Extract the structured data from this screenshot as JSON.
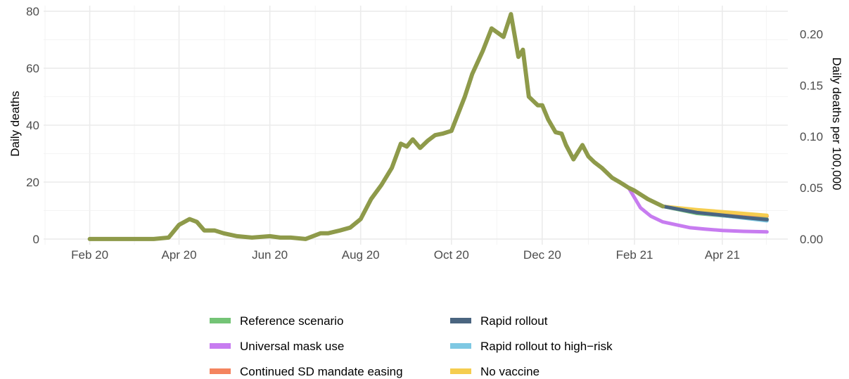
{
  "chart_data": {
    "type": "line",
    "title": "",
    "xlabel": "",
    "ylabel": "Daily deaths",
    "ylabel_right": "Daily deaths per 100,000",
    "x_tick_labels": [
      "Feb 20",
      "Apr 20",
      "Jun 20",
      "Aug 20",
      "Oct 20",
      "Dec 20",
      "Feb 21",
      "Apr 21"
    ],
    "x_tick_dates": [
      "2020-02-01",
      "2020-04-01",
      "2020-06-01",
      "2020-08-01",
      "2020-10-01",
      "2020-12-01",
      "2021-02-01",
      "2021-04-01"
    ],
    "y_ticks": [
      0,
      20,
      40,
      60,
      80
    ],
    "y_ticks_right": [
      "0.00",
      "0.05",
      "0.10",
      "0.15",
      "0.20"
    ],
    "ylim": [
      -2,
      82
    ],
    "xlim": [
      "2020-01-01",
      "2021-05-15"
    ],
    "grid": true,
    "legend_position": "bottom",
    "colors": {
      "reference": "#74c476",
      "mask": "#c77cf0",
      "sd_easing": "#f4845f",
      "rapid": "#4a6580",
      "rapid_high_risk": "#7ec8e3",
      "no_vaccine": "#f5cd4f",
      "history": "#8e9a4a"
    },
    "history": {
      "x": [
        "2020-02-01",
        "2020-02-15",
        "2020-03-01",
        "2020-03-15",
        "2020-03-25",
        "2020-04-01",
        "2020-04-08",
        "2020-04-13",
        "2020-04-18",
        "2020-04-25",
        "2020-05-01",
        "2020-05-10",
        "2020-05-20",
        "2020-06-01",
        "2020-06-08",
        "2020-06-15",
        "2020-06-25",
        "2020-07-05",
        "2020-07-10",
        "2020-07-18",
        "2020-07-25",
        "2020-08-01",
        "2020-08-08",
        "2020-08-15",
        "2020-08-22",
        "2020-08-28",
        "2020-09-01",
        "2020-09-05",
        "2020-09-10",
        "2020-09-15",
        "2020-09-20",
        "2020-09-25",
        "2020-10-01",
        "2020-10-10",
        "2020-10-15",
        "2020-10-22",
        "2020-10-28",
        "2020-11-05",
        "2020-11-10",
        "2020-11-15",
        "2020-11-18",
        "2020-11-22",
        "2020-11-28",
        "2020-12-01",
        "2020-12-05",
        "2020-12-10",
        "2020-12-14",
        "2020-12-17",
        "2020-12-22",
        "2020-12-28",
        "2021-01-01",
        "2021-01-05",
        "2021-01-10",
        "2021-01-14",
        "2021-01-17",
        "2021-01-22",
        "2021-01-28",
        "2021-02-01",
        "2021-02-10",
        "2021-02-20"
      ],
      "y": [
        0,
        0,
        0,
        0,
        0.5,
        5,
        7,
        6,
        3,
        3,
        2,
        1,
        0.5,
        1,
        0.5,
        0.5,
        0,
        2,
        2,
        3,
        4,
        7,
        14,
        19,
        25,
        33.5,
        32.5,
        35,
        32,
        34.5,
        36.5,
        37,
        38,
        50,
        58,
        66,
        74,
        71,
        79,
        64,
        66.5,
        50,
        47,
        47,
        42,
        37.5,
        37,
        33,
        28,
        33,
        29,
        27,
        25,
        23,
        21.5,
        20,
        18,
        17,
        14,
        11.5
      ]
    },
    "series": [
      {
        "name": "Reference scenario",
        "key": "reference",
        "x": [
          "2021-02-20",
          "2021-03-15",
          "2021-04-15",
          "2021-05-01"
        ],
        "y": [
          11.5,
          9,
          7.5,
          7
        ]
      },
      {
        "name": "Universal mask use",
        "key": "mask",
        "x": [
          "2021-01-28",
          "2021-02-05",
          "2021-02-12",
          "2021-02-20",
          "2021-03-01",
          "2021-03-10",
          "2021-03-20",
          "2021-04-01",
          "2021-04-15",
          "2021-05-01"
        ],
        "y": [
          18,
          11,
          8,
          6,
          5,
          4,
          3.5,
          3,
          2.7,
          2.5
        ]
      },
      {
        "name": "Continued SD mandate easing",
        "key": "sd_easing",
        "x": [
          "2021-02-20",
          "2021-03-15",
          "2021-04-15",
          "2021-05-01"
        ],
        "y": [
          11.5,
          10,
          8.8,
          8
        ]
      },
      {
        "name": "Rapid rollout",
        "key": "rapid",
        "x": [
          "2021-02-20",
          "2021-03-15",
          "2021-04-15",
          "2021-05-01"
        ],
        "y": [
          11.5,
          9.3,
          7.6,
          6.8
        ]
      },
      {
        "name": "Rapid rollout to high−risk",
        "key": "rapid_high_risk",
        "x": [
          "2021-02-20",
          "2021-03-15",
          "2021-04-15",
          "2021-05-01"
        ],
        "y": [
          11.5,
          9.3,
          7.4,
          6.4
        ]
      },
      {
        "name": "No vaccine",
        "key": "no_vaccine",
        "x": [
          "2021-02-20",
          "2021-03-15",
          "2021-04-15",
          "2021-05-01"
        ],
        "y": [
          11.5,
          10.3,
          9,
          8.3
        ]
      }
    ],
    "legend": [
      {
        "label": "Reference scenario",
        "key": "reference"
      },
      {
        "label": "Universal mask use",
        "key": "mask"
      },
      {
        "label": "Continued SD mandate easing",
        "key": "sd_easing"
      },
      {
        "label": "Rapid rollout",
        "key": "rapid"
      },
      {
        "label": "Rapid rollout to high−risk",
        "key": "rapid_high_risk"
      },
      {
        "label": "No vaccine",
        "key": "no_vaccine"
      }
    ]
  }
}
